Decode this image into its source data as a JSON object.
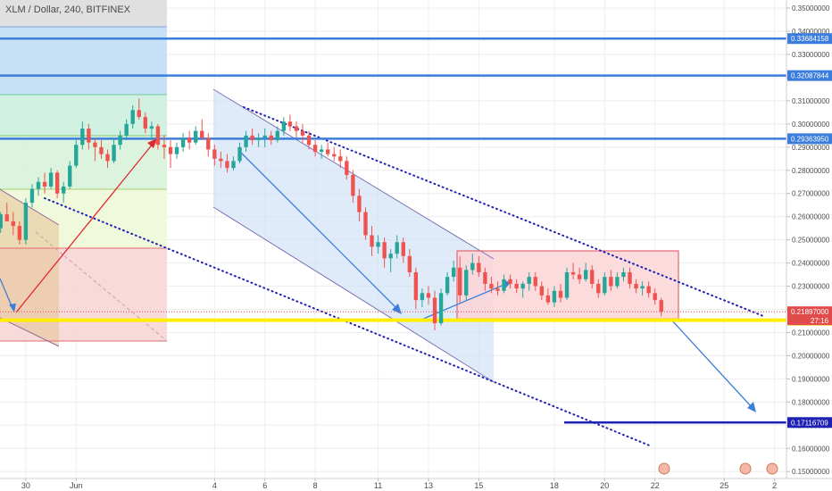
{
  "chart_data": {
    "type": "candlestick",
    "title": "XLM / Dollar, 240, BITFINEX",
    "y_ticks": [
      "0.35000000",
      "0.34000000",
      "0.33000000",
      "0.32000000",
      "0.31000000",
      "0.30000000",
      "0.29000000",
      "0.28000000",
      "0.27000000",
      "0.26000000",
      "0.25000000",
      "0.24000000",
      "0.23000000",
      "0.22000000",
      "0.21000000",
      "0.20000000",
      "0.19000000",
      "0.18000000",
      "0.17000000",
      "0.16000000",
      "0.15000000"
    ],
    "x_ticks": [
      "30",
      "Jun",
      "4",
      "6",
      "8",
      "11",
      "13",
      "15",
      "18",
      "20",
      "22",
      "25",
      "2"
    ],
    "x_tick_idx": [
      -15,
      -7,
      15,
      23,
      31,
      41,
      49,
      57,
      69,
      77,
      85,
      96,
      104
    ],
    "ylim": [
      0.147,
      0.3535
    ],
    "xlim": [
      -19.1,
      105.9
    ],
    "horizontal_levels": [
      {
        "value": 0.33684158,
        "label": "0.33684158",
        "color": "#3b7ddd"
      },
      {
        "value": 0.32087844,
        "label": "0.32087844",
        "color": "#3b7ddd"
      },
      {
        "value": 0.2936395,
        "label": "0.29363950",
        "color": "#3b7ddd"
      },
      {
        "value": 0.17116709,
        "label": "0.17116709",
        "color": "#1e22b3"
      }
    ],
    "support_level": {
      "value": 0.21533645,
      "label": "0.21533645",
      "color": "#ffee00"
    },
    "last_price": {
      "value": 0.21897,
      "label": "0.21897000",
      "countdown": "27:16",
      "color": "#e24b4b"
    },
    "candles": [
      [
        -19,
        0.255,
        0.262,
        0.253,
        0.261
      ],
      [
        -18,
        0.261,
        0.266,
        0.259,
        0.258
      ],
      [
        -17,
        0.258,
        0.262,
        0.252,
        0.256
      ],
      [
        -16,
        0.256,
        0.258,
        0.248,
        0.25
      ],
      [
        -15,
        0.25,
        0.268,
        0.248,
        0.266
      ],
      [
        -14,
        0.266,
        0.274,
        0.264,
        0.272
      ],
      [
        -13,
        0.272,
        0.277,
        0.269,
        0.275
      ],
      [
        -12,
        0.275,
        0.279,
        0.27,
        0.273
      ],
      [
        -11,
        0.273,
        0.281,
        0.272,
        0.279
      ],
      [
        -10,
        0.279,
        0.28,
        0.268,
        0.27
      ],
      [
        -9,
        0.27,
        0.275,
        0.266,
        0.273
      ],
      [
        -8,
        0.273,
        0.284,
        0.272,
        0.282
      ],
      [
        -7,
        0.282,
        0.293,
        0.281,
        0.291
      ],
      [
        -6,
        0.291,
        0.301,
        0.289,
        0.298
      ],
      [
        -5,
        0.298,
        0.3,
        0.289,
        0.292
      ],
      [
        -4,
        0.292,
        0.294,
        0.284,
        0.29
      ],
      [
        -3,
        0.29,
        0.293,
        0.285,
        0.287
      ],
      [
        -2,
        0.287,
        0.289,
        0.281,
        0.284
      ],
      [
        -1,
        0.284,
        0.294,
        0.283,
        0.291
      ],
      [
        0,
        0.291,
        0.297,
        0.289,
        0.295
      ],
      [
        1,
        0.295,
        0.302,
        0.293,
        0.3
      ],
      [
        2,
        0.3,
        0.308,
        0.298,
        0.306
      ],
      [
        3,
        0.306,
        0.311,
        0.302,
        0.303
      ],
      [
        4,
        0.303,
        0.305,
        0.296,
        0.298
      ],
      [
        5,
        0.298,
        0.301,
        0.293,
        0.299
      ],
      [
        6,
        0.299,
        0.3,
        0.289,
        0.291
      ],
      [
        7,
        0.291,
        0.295,
        0.285,
        0.29
      ],
      [
        8,
        0.29,
        0.293,
        0.281,
        0.287
      ],
      [
        9,
        0.287,
        0.292,
        0.285,
        0.29
      ],
      [
        10,
        0.29,
        0.296,
        0.288,
        0.294
      ],
      [
        11,
        0.294,
        0.297,
        0.289,
        0.292
      ],
      [
        12,
        0.292,
        0.299,
        0.291,
        0.297
      ],
      [
        13,
        0.297,
        0.302,
        0.293,
        0.294
      ],
      [
        14,
        0.294,
        0.296,
        0.286,
        0.289
      ],
      [
        15,
        0.289,
        0.291,
        0.282,
        0.285
      ],
      [
        16,
        0.285,
        0.288,
        0.281,
        0.284
      ],
      [
        17,
        0.284,
        0.287,
        0.279,
        0.281
      ],
      [
        18,
        0.281,
        0.286,
        0.28,
        0.284
      ],
      [
        19,
        0.284,
        0.292,
        0.283,
        0.29
      ],
      [
        20,
        0.29,
        0.297,
        0.288,
        0.295
      ],
      [
        21,
        0.295,
        0.298,
        0.291,
        0.293
      ],
      [
        22,
        0.293,
        0.296,
        0.29,
        0.294
      ],
      [
        23,
        0.294,
        0.298,
        0.29,
        0.295
      ],
      [
        24,
        0.295,
        0.297,
        0.291,
        0.293
      ],
      [
        25,
        0.293,
        0.299,
        0.292,
        0.297
      ],
      [
        26,
        0.297,
        0.303,
        0.295,
        0.301
      ],
      [
        27,
        0.301,
        0.304,
        0.297,
        0.299
      ],
      [
        28,
        0.299,
        0.301,
        0.294,
        0.297
      ],
      [
        29,
        0.297,
        0.3,
        0.292,
        0.295
      ],
      [
        30,
        0.295,
        0.297,
        0.289,
        0.291
      ],
      [
        31,
        0.291,
        0.293,
        0.286,
        0.288
      ],
      [
        32,
        0.288,
        0.291,
        0.285,
        0.289
      ],
      [
        33,
        0.289,
        0.292,
        0.286,
        0.287
      ],
      [
        34,
        0.287,
        0.29,
        0.284,
        0.286
      ],
      [
        35,
        0.286,
        0.289,
        0.281,
        0.284
      ],
      [
        36,
        0.284,
        0.286,
        0.276,
        0.278
      ],
      [
        37,
        0.278,
        0.28,
        0.266,
        0.269
      ],
      [
        38,
        0.269,
        0.272,
        0.258,
        0.262
      ],
      [
        39,
        0.262,
        0.264,
        0.25,
        0.252
      ],
      [
        40,
        0.252,
        0.256,
        0.243,
        0.247
      ],
      [
        41,
        0.247,
        0.252,
        0.244,
        0.249
      ],
      [
        42,
        0.249,
        0.251,
        0.238,
        0.242
      ],
      [
        43,
        0.242,
        0.246,
        0.236,
        0.244
      ],
      [
        44,
        0.244,
        0.252,
        0.242,
        0.249
      ],
      [
        45,
        0.249,
        0.251,
        0.24,
        0.243
      ],
      [
        46,
        0.243,
        0.246,
        0.234,
        0.236
      ],
      [
        47,
        0.236,
        0.238,
        0.22,
        0.224
      ],
      [
        48,
        0.224,
        0.229,
        0.221,
        0.227
      ],
      [
        49,
        0.227,
        0.23,
        0.222,
        0.225
      ],
      [
        50,
        0.225,
        0.228,
        0.211,
        0.214
      ],
      [
        51,
        0.214,
        0.229,
        0.213,
        0.227
      ],
      [
        52,
        0.227,
        0.236,
        0.226,
        0.234
      ],
      [
        53,
        0.234,
        0.241,
        0.232,
        0.238
      ],
      [
        54,
        0.238,
        0.243,
        0.223,
        0.226
      ],
      [
        55,
        0.226,
        0.239,
        0.224,
        0.237
      ],
      [
        56,
        0.237,
        0.244,
        0.235,
        0.24
      ],
      [
        57,
        0.24,
        0.243,
        0.234,
        0.236
      ],
      [
        58,
        0.236,
        0.238,
        0.228,
        0.231
      ],
      [
        59,
        0.231,
        0.234,
        0.227,
        0.229
      ],
      [
        60,
        0.229,
        0.232,
        0.226,
        0.228
      ],
      [
        61,
        0.228,
        0.235,
        0.227,
        0.233
      ],
      [
        62,
        0.233,
        0.235,
        0.229,
        0.231
      ],
      [
        63,
        0.231,
        0.233,
        0.227,
        0.229
      ],
      [
        64,
        0.229,
        0.232,
        0.225,
        0.231
      ],
      [
        65,
        0.231,
        0.236,
        0.228,
        0.234
      ],
      [
        66,
        0.234,
        0.236,
        0.228,
        0.23
      ],
      [
        67,
        0.23,
        0.232,
        0.224,
        0.226
      ],
      [
        68,
        0.226,
        0.229,
        0.222,
        0.223
      ],
      [
        69,
        0.223,
        0.23,
        0.221,
        0.228
      ],
      [
        70,
        0.228,
        0.231,
        0.223,
        0.225
      ],
      [
        71,
        0.225,
        0.238,
        0.224,
        0.236
      ],
      [
        72,
        0.236,
        0.24,
        0.233,
        0.235
      ],
      [
        73,
        0.235,
        0.238,
        0.231,
        0.233
      ],
      [
        74,
        0.233,
        0.24,
        0.232,
        0.237
      ],
      [
        75,
        0.237,
        0.239,
        0.229,
        0.231
      ],
      [
        76,
        0.231,
        0.233,
        0.225,
        0.227
      ],
      [
        77,
        0.227,
        0.236,
        0.226,
        0.234
      ],
      [
        78,
        0.234,
        0.237,
        0.228,
        0.23
      ],
      [
        79,
        0.23,
        0.236,
        0.229,
        0.234
      ],
      [
        80,
        0.234,
        0.238,
        0.232,
        0.236
      ],
      [
        81,
        0.236,
        0.238,
        0.229,
        0.231
      ],
      [
        82,
        0.231,
        0.233,
        0.227,
        0.229
      ],
      [
        83,
        0.229,
        0.232,
        0.226,
        0.23
      ],
      [
        84,
        0.23,
        0.232,
        0.225,
        0.227
      ],
      [
        85,
        0.227,
        0.229,
        0.222,
        0.224
      ],
      [
        86,
        0.224,
        0.225,
        0.217,
        0.219
      ]
    ],
    "colors": {
      "up": "#26a69a",
      "down": "#ef5350",
      "grid": "#eeeeee",
      "axis_text": "#4a4a4a"
    }
  }
}
